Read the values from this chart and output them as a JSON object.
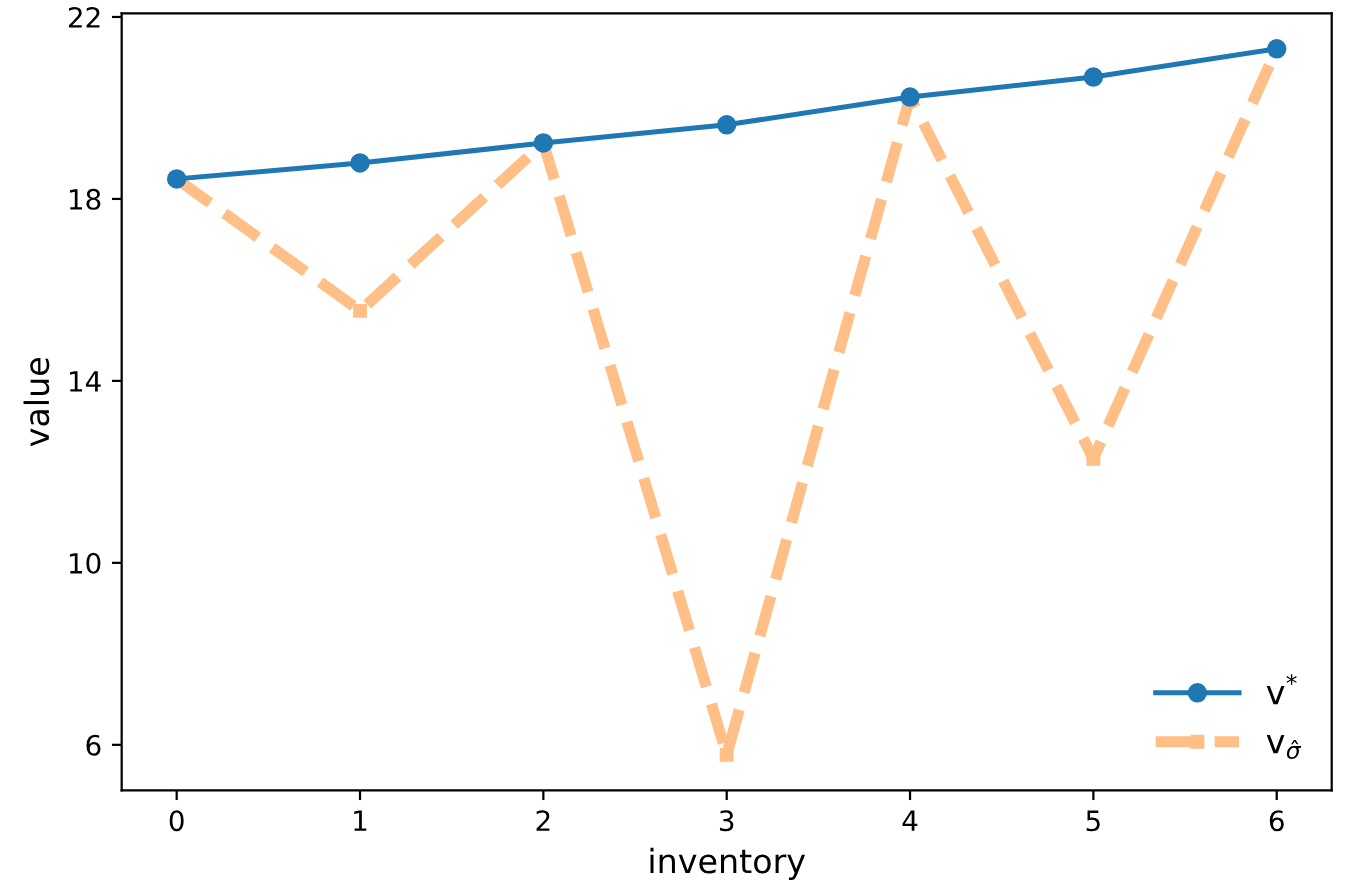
{
  "chart_data": {
    "type": "line",
    "xlabel": "inventory",
    "ylabel": "value",
    "x": [
      0,
      1,
      2,
      3,
      4,
      5,
      6
    ],
    "series": [
      {
        "name": "v$^{*}$",
        "color": "#1f77b4",
        "marker": "circle",
        "line_style": "solid",
        "values": [
          18.44,
          18.79,
          19.23,
          19.63,
          20.24,
          20.68,
          21.3
        ]
      },
      {
        "name": "v$_{σ̂}$",
        "color": "#ffbf86",
        "marker": "square",
        "line_style": "dashed",
        "values": [
          18.44,
          15.54,
          19.23,
          5.78,
          20.24,
          12.29,
          21.3
        ]
      }
    ],
    "xlim": [
      -0.3,
      6.3
    ],
    "ylim": [
      5.0,
      22.08
    ],
    "xticks": [
      0,
      1,
      2,
      3,
      4,
      5,
      6
    ],
    "yticks": [
      6,
      10,
      14,
      18,
      22
    ],
    "grid": false,
    "legend": "bottom right"
  }
}
